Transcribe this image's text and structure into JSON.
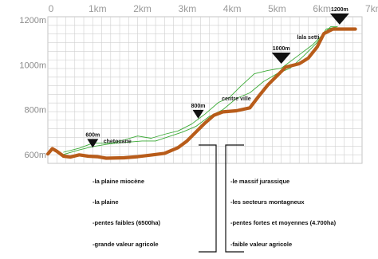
{
  "chart_data": {
    "type": "line",
    "x_unit": "km",
    "y_unit": "m",
    "xlim": [
      0,
      7
    ],
    "ylim": [
      560,
      1215
    ],
    "x_ticks": [
      "0",
      "1km",
      "2km",
      "3km",
      "4km",
      "5km",
      "6km",
      "7km"
    ],
    "y_ticks": [
      {
        "value": 600,
        "label": "600m"
      },
      {
        "value": 800,
        "label": "800m"
      },
      {
        "value": 1000,
        "label": "1000m"
      },
      {
        "value": 1200,
        "label": "1200m"
      }
    ],
    "grid": true,
    "series": [
      {
        "name": "",
        "color": "#b85c1a",
        "points": [
          [
            0.0,
            602
          ],
          [
            0.1,
            626
          ],
          [
            0.2,
            614
          ],
          [
            0.35,
            592
          ],
          [
            0.5,
            588
          ],
          [
            0.7,
            598
          ],
          [
            0.9,
            592
          ],
          [
            1.1,
            590
          ],
          [
            1.3,
            583
          ],
          [
            1.7,
            585
          ],
          [
            2.0,
            590
          ],
          [
            2.3,
            597
          ],
          [
            2.6,
            605
          ],
          [
            2.9,
            630
          ],
          [
            3.1,
            660
          ],
          [
            3.3,
            700
          ],
          [
            3.5,
            740
          ],
          [
            3.7,
            775
          ],
          [
            3.9,
            790
          ],
          [
            4.2,
            795
          ],
          [
            4.5,
            808
          ],
          [
            4.7,
            860
          ],
          [
            4.9,
            910
          ],
          [
            5.1,
            950
          ],
          [
            5.3,
            990
          ],
          [
            5.6,
            1005
          ],
          [
            5.8,
            1030
          ],
          [
            6.0,
            1080
          ],
          [
            6.15,
            1140
          ],
          [
            6.35,
            1160
          ],
          [
            6.6,
            1160
          ],
          [
            6.85,
            1160
          ]
        ]
      },
      {
        "name": "",
        "color": "#3aaa35",
        "points": [
          [
            0.35,
            610
          ],
          [
            0.7,
            628
          ],
          [
            1.0,
            650
          ],
          [
            1.4,
            650
          ],
          [
            1.7,
            665
          ],
          [
            2.0,
            682
          ],
          [
            2.3,
            672
          ],
          [
            2.6,
            690
          ],
          [
            2.9,
            705
          ],
          [
            3.2,
            735
          ],
          [
            3.5,
            780
          ],
          [
            3.8,
            832
          ],
          [
            4.05,
            855
          ],
          [
            4.3,
            905
          ],
          [
            4.6,
            960
          ],
          [
            4.9,
            975
          ],
          [
            5.2,
            985
          ],
          [
            5.6,
            1045
          ],
          [
            5.9,
            1090
          ],
          [
            6.05,
            1120
          ],
          [
            6.3,
            1170
          ],
          [
            6.45,
            1170
          ]
        ]
      },
      {
        "name": "",
        "color": "#3aaa35",
        "points": [
          [
            0.35,
            600
          ],
          [
            0.7,
            620
          ],
          [
            1.0,
            635
          ],
          [
            1.4,
            648
          ],
          [
            1.8,
            655
          ],
          [
            2.1,
            660
          ],
          [
            2.4,
            660
          ],
          [
            2.7,
            680
          ],
          [
            3.0,
            700
          ],
          [
            3.3,
            725
          ],
          [
            3.6,
            770
          ],
          [
            3.9,
            800
          ],
          [
            4.2,
            850
          ],
          [
            4.5,
            875
          ],
          [
            4.8,
            925
          ],
          [
            5.1,
            960
          ],
          [
            5.4,
            985
          ],
          [
            5.7,
            1040
          ],
          [
            6.0,
            1100
          ],
          [
            6.2,
            1160
          ],
          [
            6.45,
            1170
          ]
        ]
      }
    ],
    "markers": [
      {
        "label": "600m",
        "x": 1.0,
        "y": 630
      },
      {
        "label": "800m",
        "x": 3.35,
        "y": 760
      },
      {
        "label": "1000m",
        "x": 5.2,
        "y": 1005
      },
      {
        "label": "1200m",
        "x": 6.5,
        "y": 1180
      }
    ],
    "place_labels": [
      {
        "label": "chetouane",
        "x": 1.55,
        "y": 650
      },
      {
        "label": "centre ville",
        "x": 4.2,
        "y": 842
      },
      {
        "label": "lala  setti",
        "x": 5.8,
        "y": 1115
      }
    ]
  },
  "legend": {
    "left": [
      "-la plaine miocène",
      "-la plaine",
      "-pentes faibles (6500ha)",
      "-grande valeur agricole"
    ],
    "right": [
      "-le massif jurassique",
      "-les secteurs montagneux",
      "-pentes fortes et moyennes (4.700ha)",
      "-faible valeur agricole"
    ]
  }
}
